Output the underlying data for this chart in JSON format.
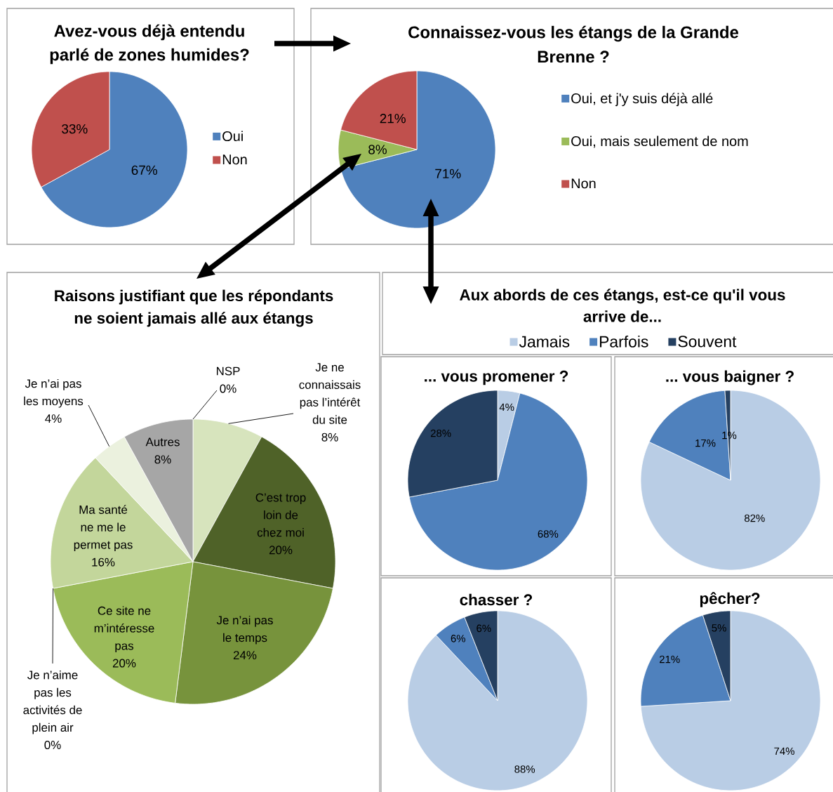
{
  "chart_data": [
    {
      "type": "pie",
      "title": "Avez-vous déjà entendu parlé de zones humides?",
      "categories": [
        "Oui",
        "Non"
      ],
      "values": [
        67,
        33
      ],
      "colors": [
        "#4f81bd",
        "#c0504d"
      ],
      "value_labels": [
        "67%",
        "33%"
      ],
      "legend": "right"
    },
    {
      "type": "pie",
      "title": "Connaissez-vous les étangs de la Grande Brenne ?",
      "categories": [
        "Oui, et j'y suis déjà allé",
        "Oui, mais seulement de nom",
        "Non"
      ],
      "values": [
        71,
        8,
        21
      ],
      "colors": [
        "#4f81bd",
        "#9bbb59",
        "#c0504d"
      ],
      "value_labels": [
        "71%",
        "8%",
        "21%"
      ],
      "legend": "right"
    },
    {
      "type": "pie",
      "title": "Raisons justifiant que les répondants ne soient jamais allé aux étangs",
      "categories": [
        "Je ne connaissais pas l’intérêt du site",
        "C’est trop loin de chez moi",
        "Je n’ai pas le temps",
        "Ce site ne m’intéresse pas",
        "Je n’aime pas les activités de plein air",
        "Ma santé ne me le permet pas",
        "Je n’ai pas les moyens",
        "Autres",
        "NSP"
      ],
      "values": [
        8,
        20,
        24,
        20,
        0,
        16,
        4,
        8,
        0
      ],
      "colors": [
        "#d7e4bd",
        "#4f6228",
        "#77933c",
        "#9bbb59",
        null,
        "#c3d69b",
        "#ebf1de",
        "#a6a6a6",
        null
      ],
      "value_labels": [
        "8%",
        "20%",
        "24%",
        "20%",
        "0%",
        "16%",
        "4%",
        "8%",
        "0%"
      ]
    },
    {
      "type": "pie",
      "title": "Aux abords de ces étangs, est-ce qu'il vous arrive de...",
      "subtitle": "... vous promener ?",
      "categories": [
        "Jamais",
        "Parfois",
        "Souvent"
      ],
      "values": [
        4,
        68,
        28
      ],
      "colors": [
        "#b9cde5",
        "#4f81bd",
        "#254061"
      ],
      "value_labels": [
        "4%",
        "68%",
        "28%"
      ],
      "legend": "top"
    },
    {
      "type": "pie",
      "title": "... vous baigner ?",
      "categories": [
        null,
        null,
        null
      ],
      "values": [
        82,
        17,
        1
      ],
      "colors": [
        "#b9cde5",
        "#4f81bd",
        "#254061"
      ],
      "value_labels": [
        "82%",
        "17%",
        "1%"
      ]
    },
    {
      "type": "pie",
      "title": "chasser ?",
      "categories": [
        null,
        null,
        null
      ],
      "values": [
        88,
        6,
        6
      ],
      "colors": [
        "#b9cde5",
        "#4f81bd",
        "#254061"
      ],
      "value_labels": [
        "88%",
        "6%",
        "6%"
      ]
    },
    {
      "type": "pie",
      "title": "pêcher?",
      "categories": [
        null,
        null,
        null
      ],
      "values": [
        74,
        21,
        5
      ],
      "colors": [
        "#b9cde5",
        "#4f81bd",
        "#254061"
      ],
      "value_labels": [
        "74%",
        "21%",
        "5%"
      ]
    }
  ]
}
